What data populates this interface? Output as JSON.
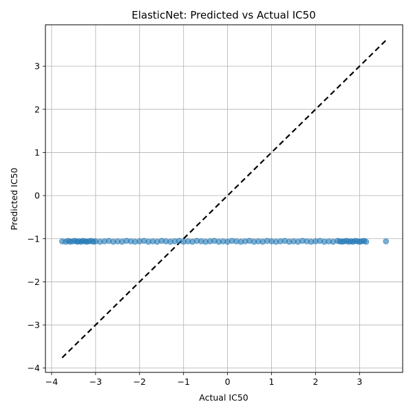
{
  "chart_data": {
    "type": "scatter",
    "title": "ElasticNet: Predicted vs Actual IC50",
    "xlabel": "Actual IC50",
    "ylabel": "Predicted IC50",
    "xlim": [
      -4.14,
      3.98
    ],
    "ylim": [
      -4.1,
      3.96
    ],
    "xticks": [
      -4,
      -3,
      -2,
      -1,
      0,
      1,
      2,
      3
    ],
    "yticks": [
      -4,
      -3,
      -2,
      -1,
      0,
      1,
      2,
      3
    ],
    "xtick_labels": [
      "−4",
      "−3",
      "−2",
      "−1",
      "0",
      "1",
      "2",
      "3"
    ],
    "ytick_labels": [
      "−4",
      "−3",
      "−2",
      "−1",
      "0",
      "1",
      "2",
      "3"
    ],
    "grid": true,
    "point_color": "#1f77b4",
    "point_alpha": 0.6,
    "series": [
      {
        "x": [
          -3.76,
          -3.68,
          -3.62,
          -3.58,
          -3.52,
          -3.47,
          -3.42,
          -3.38,
          -3.33,
          -3.29,
          -3.24,
          -3.2,
          -3.15,
          -3.1,
          -3.05,
          -3.0,
          -2.9,
          -2.8,
          -2.7,
          -2.6,
          -2.5,
          -2.4,
          -2.3,
          -2.2,
          -2.1,
          -2.0,
          -1.9,
          -1.8,
          -1.7,
          -1.6,
          -1.5,
          -1.4,
          -1.3,
          -1.2,
          -1.1,
          -1.0,
          -0.9,
          -0.8,
          -0.7,
          -0.6,
          -0.5,
          -0.4,
          -0.3,
          -0.2,
          -0.1,
          0.0,
          0.1,
          0.2,
          0.3,
          0.4,
          0.5,
          0.6,
          0.7,
          0.8,
          0.9,
          1.0,
          1.1,
          1.2,
          1.3,
          1.4,
          1.5,
          1.6,
          1.7,
          1.8,
          1.9,
          2.0,
          2.1,
          2.2,
          2.3,
          2.4,
          2.5,
          2.55,
          2.6,
          2.65,
          2.7,
          2.75,
          2.8,
          2.85,
          2.9,
          2.95,
          3.0,
          3.05,
          3.1,
          3.15,
          3.6
        ],
        "y": [
          -1.06,
          -1.07,
          -1.05,
          -1.07,
          -1.06,
          -1.05,
          -1.07,
          -1.06,
          -1.07,
          -1.05,
          -1.06,
          -1.07,
          -1.06,
          -1.05,
          -1.07,
          -1.06,
          -1.07,
          -1.06,
          -1.05,
          -1.07,
          -1.06,
          -1.07,
          -1.05,
          -1.06,
          -1.07,
          -1.06,
          -1.05,
          -1.07,
          -1.06,
          -1.07,
          -1.05,
          -1.06,
          -1.07,
          -1.06,
          -1.05,
          -1.07,
          -1.06,
          -1.07,
          -1.05,
          -1.06,
          -1.07,
          -1.06,
          -1.05,
          -1.07,
          -1.06,
          -1.07,
          -1.05,
          -1.06,
          -1.07,
          -1.06,
          -1.05,
          -1.07,
          -1.06,
          -1.07,
          -1.05,
          -1.06,
          -1.07,
          -1.06,
          -1.05,
          -1.07,
          -1.06,
          -1.07,
          -1.05,
          -1.06,
          -1.07,
          -1.06,
          -1.05,
          -1.07,
          -1.06,
          -1.07,
          -1.05,
          -1.06,
          -1.07,
          -1.06,
          -1.05,
          -1.07,
          -1.06,
          -1.07,
          -1.05,
          -1.06,
          -1.07,
          -1.06,
          -1.05,
          -1.07,
          -1.06
        ]
      }
    ],
    "reference_line": {
      "style": "dashed",
      "color": "#000000",
      "x": [
        -3.76,
        3.6
      ],
      "y": [
        -3.76,
        3.6
      ]
    }
  }
}
